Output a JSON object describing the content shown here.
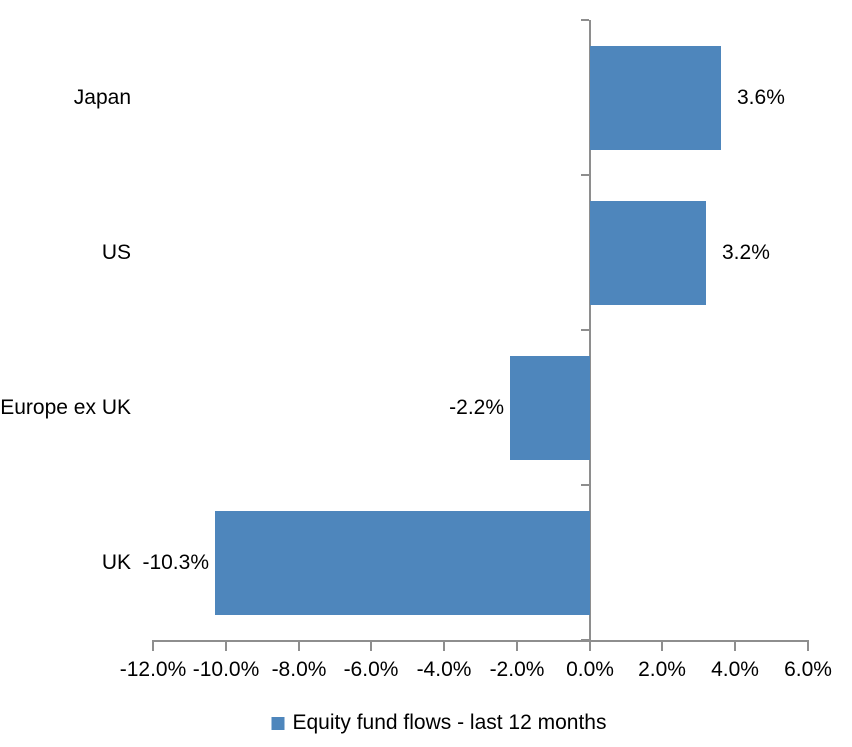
{
  "chart_data": {
    "type": "bar",
    "orientation": "horizontal",
    "categories": [
      "Japan",
      "US",
      "Europe ex UK",
      "UK"
    ],
    "values": [
      3.6,
      3.2,
      -2.2,
      -10.3
    ],
    "value_labels": [
      "3.6%",
      "3.2%",
      "-2.2%",
      "-10.3%"
    ],
    "xlim": [
      -12,
      6
    ],
    "x_ticks": [
      -12,
      -10,
      -8,
      -6,
      -4,
      -2,
      0,
      2,
      4,
      6
    ],
    "x_tick_labels": [
      "-12.0%",
      "-10.0%",
      "-8.0%",
      "-6.0%",
      "-4.0%",
      "-2.0%",
      "0.0%",
      "2.0%",
      "4.0%",
      "6.0%"
    ],
    "grid": false,
    "title": "",
    "xlabel": "",
    "ylabel": "",
    "legend": {
      "label": "Equity fund flows - last 12 months",
      "position": "bottom"
    },
    "colors": {
      "bar": "#4E86BC",
      "axis": "#8E8E8E",
      "text": "#000000",
      "background": "#FFFFFF"
    }
  }
}
